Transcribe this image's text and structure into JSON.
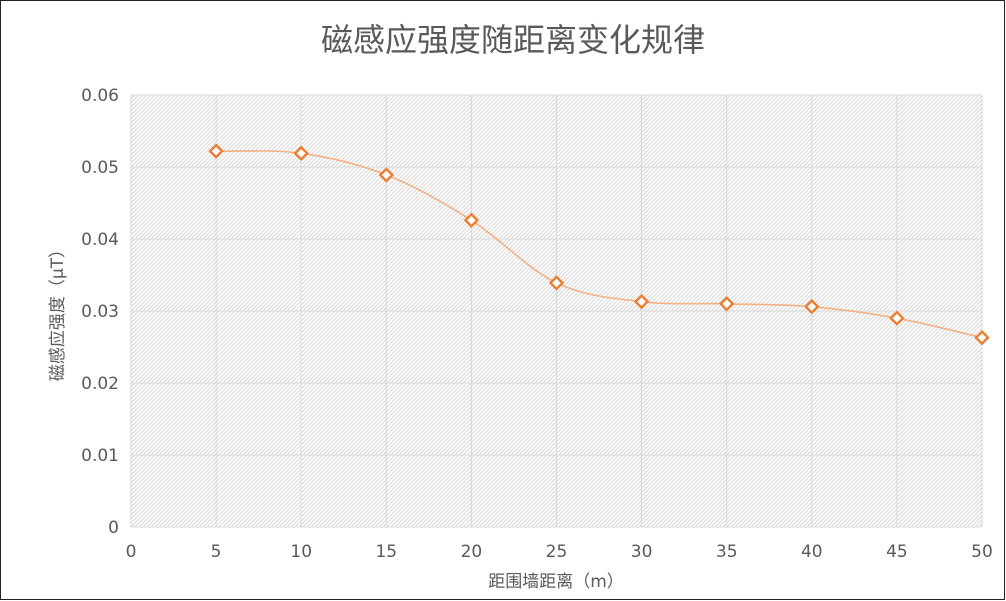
{
  "chart_data": {
    "type": "scatter",
    "title": "磁感应强度随距离变化规律",
    "xlabel": "距围墙距离（m）",
    "ylabel": "磁感应强度（μT）",
    "xlim": [
      0,
      50
    ],
    "ylim": [
      0,
      0.06
    ],
    "x_ticks": [
      "0",
      "5",
      "10",
      "15",
      "20",
      "25",
      "30",
      "35",
      "40",
      "45",
      "50"
    ],
    "y_ticks": [
      "0",
      "0.01",
      "0.02",
      "0.03",
      "0.04",
      "0.05",
      "0.06"
    ],
    "grid": true,
    "series": [
      {
        "x": [
          5,
          10,
          15,
          20,
          25,
          30,
          35,
          40,
          45,
          50
        ],
        "y": [
          0.0522,
          0.0519,
          0.0489,
          0.0426,
          0.0339,
          0.0313,
          0.031,
          0.0306,
          0.029,
          0.0263
        ],
        "marker": "diamond",
        "line": "smooth",
        "color": "#ED7D31",
        "line_color": "#F4B183"
      }
    ]
  }
}
